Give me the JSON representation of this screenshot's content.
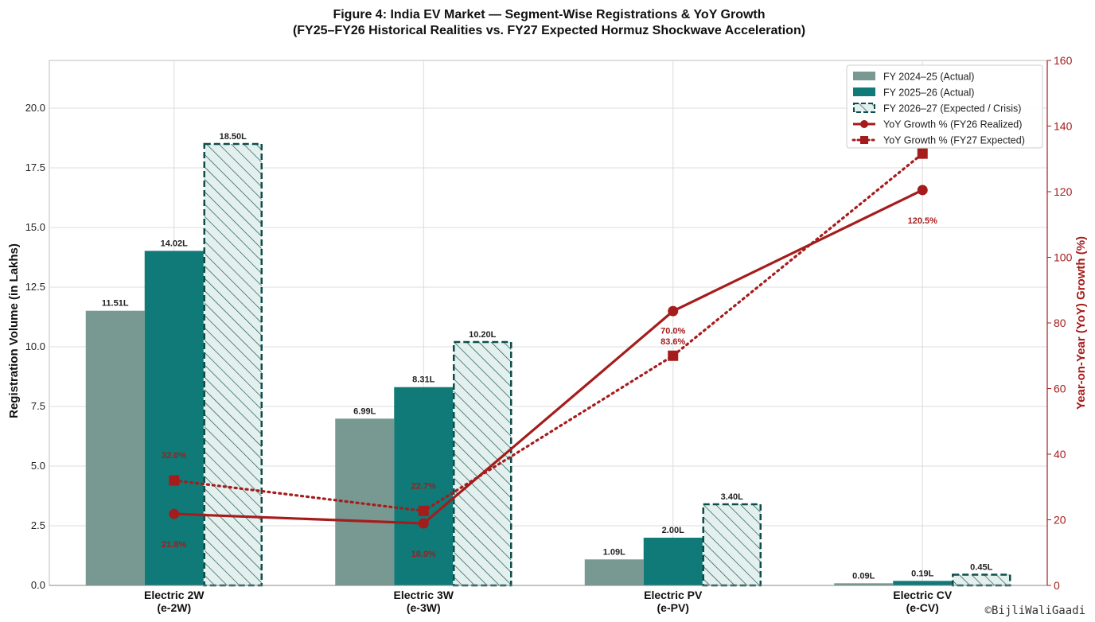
{
  "chart_data": {
    "type": "bar",
    "title": "Figure 4: India EV Market — Segment-Wise Registrations & YoY Growth",
    "subtitle": "(FY25–FY26 Historical Realities vs. FY27 Expected Hormuz Shockwave Acceleration)",
    "categories": [
      "Electric 2W\n(e-2W)",
      "Electric 3W\n(e-3W)",
      "Electric PV\n(e-PV)",
      "Electric CV\n(e-CV)"
    ],
    "ylabel": "Registration Volume (in Lakhs)",
    "ylim": [
      0,
      22
    ],
    "yticks": [
      "0.0",
      "2.5",
      "5.0",
      "7.5",
      "10.0",
      "12.5",
      "15.0",
      "17.5",
      "20.0"
    ],
    "y2label": "Year-on-Year (YoY) Growth (%)",
    "y2lim": [
      0,
      160
    ],
    "y2ticks": [
      "0",
      "20",
      "40",
      "60",
      "80",
      "100",
      "120",
      "140",
      "160"
    ],
    "grid": true,
    "legend_position": "top-right",
    "series": [
      {
        "name": "FY 2024–25 (Actual)",
        "kind": "bar",
        "color": "#789991",
        "values": [
          11.51,
          6.99,
          1.09,
          0.09
        ],
        "labels": [
          "11.51L",
          "6.99L",
          "1.09L",
          "0.09L"
        ]
      },
      {
        "name": "FY 2025–26 (Actual)",
        "kind": "bar",
        "color": "#0f7a77",
        "values": [
          14.02,
          8.31,
          2.0,
          0.19
        ],
        "labels": [
          "14.02L",
          "8.31L",
          "2.00L",
          "0.19L"
        ]
      },
      {
        "name": "FY 2026–27 (Expected / Crisis)",
        "kind": "bar-hatched",
        "color": "#0d4d4a",
        "fill": "#e3f0ee",
        "values": [
          18.5,
          10.2,
          3.4,
          0.45
        ],
        "labels": [
          "18.50L",
          "10.20L",
          "3.40L",
          "0.45L"
        ]
      },
      {
        "name": "YoY Growth % (FY26 Realized)",
        "kind": "line",
        "axis": "right",
        "color": "#a51c1c",
        "values": [
          21.8,
          18.9,
          83.6,
          120.5
        ],
        "labels": [
          "21.8%",
          "18.9%",
          "83.6%",
          "120.5%"
        ]
      },
      {
        "name": "YoY Growth % (FY27 Expected)",
        "kind": "line-dotted",
        "axis": "right",
        "color": "#a51c1c",
        "values": [
          32.0,
          22.7,
          70.0,
          131.6
        ],
        "labels": [
          "32.0%",
          "22.7%",
          "70.0%",
          ""
        ]
      }
    ]
  },
  "watermark": "©BijliWaliGaadi"
}
